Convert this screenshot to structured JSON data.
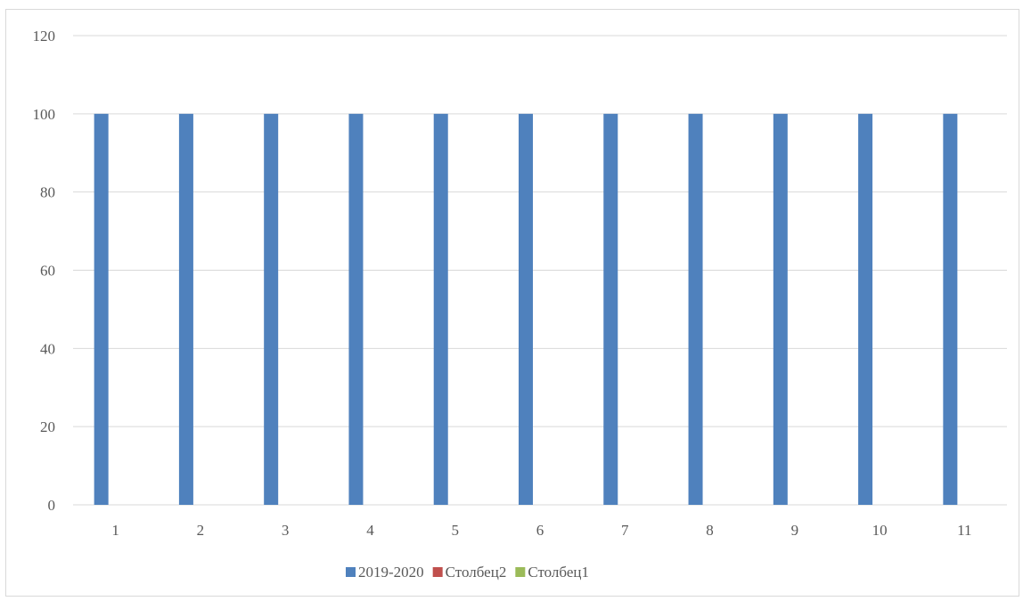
{
  "chart_data": {
    "type": "bar",
    "categories": [
      "1",
      "2",
      "3",
      "4",
      "5",
      "6",
      "7",
      "8",
      "9",
      "10",
      "11"
    ],
    "series": [
      {
        "name": "2019-2020",
        "values": [
          100,
          100,
          100,
          100,
          100,
          100,
          100,
          100,
          100,
          100,
          100
        ],
        "color": "#4f81bd"
      },
      {
        "name": "Столбец2",
        "values": [
          0,
          0,
          0,
          0,
          0,
          0,
          0,
          0,
          0,
          0,
          0
        ],
        "color": "#c0504d"
      },
      {
        "name": "Столбец1",
        "values": [
          0,
          0,
          0,
          0,
          0,
          0,
          0,
          0,
          0,
          0,
          0
        ],
        "color": "#9bbb59"
      }
    ],
    "yticks": [
      "0",
      "20",
      "40",
      "60",
      "80",
      "100",
      "120"
    ],
    "ylim": [
      0,
      120
    ],
    "grid": true,
    "legend": "bottom",
    "gridline_color": "#d9d9d9"
  }
}
